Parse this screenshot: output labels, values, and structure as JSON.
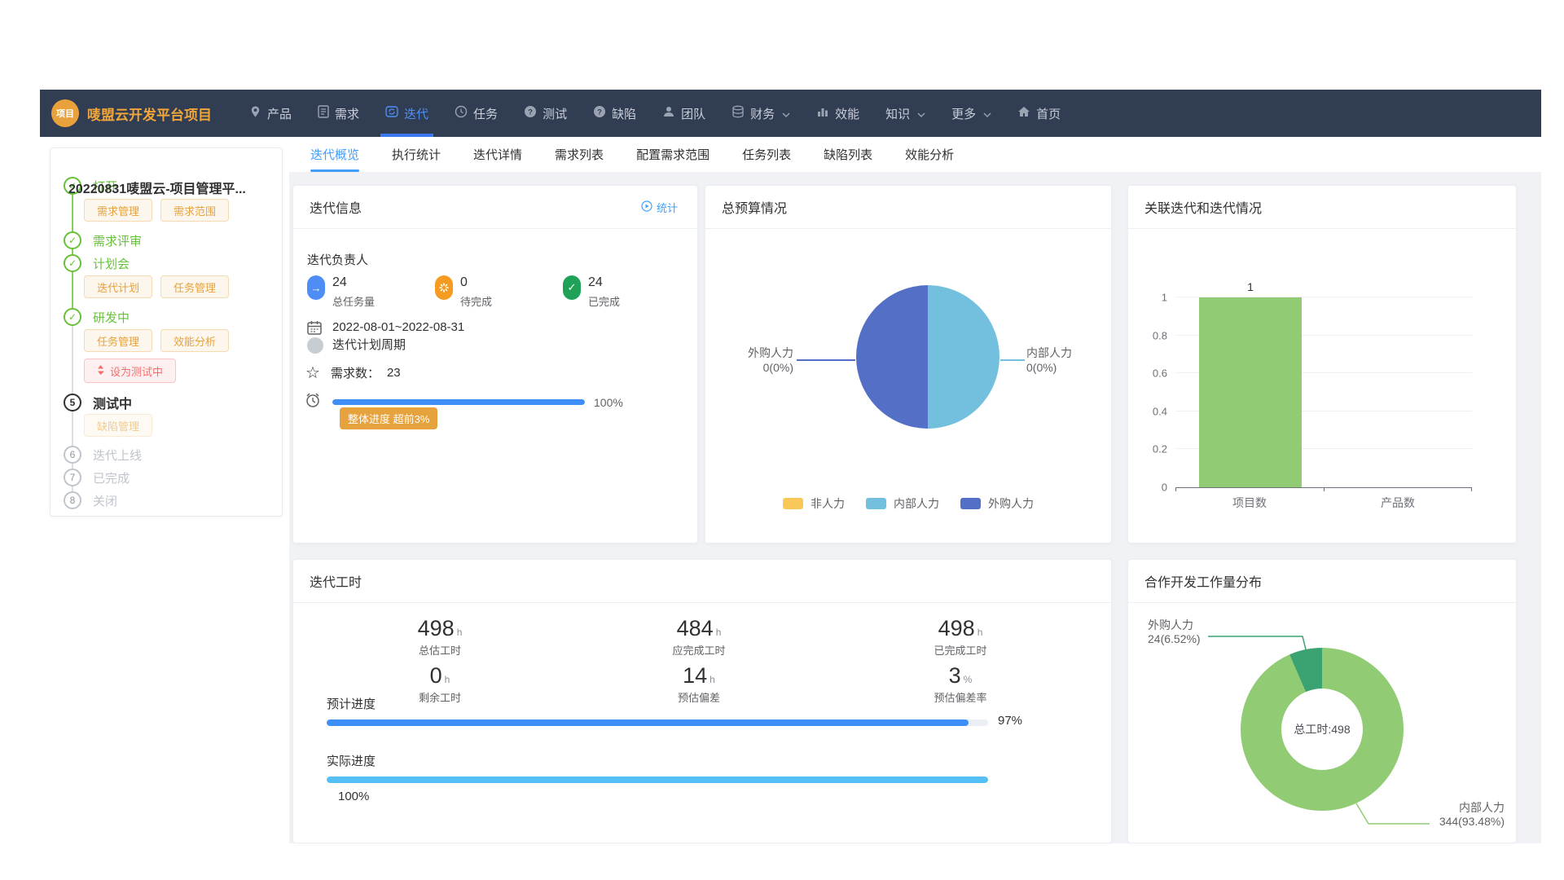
{
  "navbar": {
    "logo": "项目",
    "title": "唛盟云开发平台项目",
    "items": [
      {
        "label": "产品",
        "icon": "pin-icon"
      },
      {
        "label": "需求",
        "icon": "document-icon"
      },
      {
        "label": "迭代",
        "icon": "iteration-icon",
        "active": true
      },
      {
        "label": "任务",
        "icon": "clock-icon"
      },
      {
        "label": "测试",
        "icon": "question-icon"
      },
      {
        "label": "缺陷",
        "icon": "question-icon"
      },
      {
        "label": "团队",
        "icon": "person-icon"
      },
      {
        "label": "财务",
        "icon": "database-icon",
        "dropdown": true
      },
      {
        "label": "效能",
        "icon": "bar-chart-icon"
      },
      {
        "label": "知识",
        "dropdown": true
      },
      {
        "label": "更多",
        "dropdown": true
      },
      {
        "label": "首页",
        "icon": "home-icon"
      }
    ]
  },
  "sidebar": {
    "project_title": "20220831唛盟云-项目管理平...",
    "steps": [
      {
        "label": "打开",
        "state": "done"
      },
      {
        "label": "需求评审",
        "state": "done"
      },
      {
        "label": "计划会",
        "state": "done"
      },
      {
        "label": "研发中",
        "state": "done"
      },
      {
        "label": "测试中",
        "state": "current",
        "num": "5"
      },
      {
        "label": "迭代上线",
        "state": "pending",
        "num": "6"
      },
      {
        "label": "已完成",
        "state": "pending",
        "num": "7"
      },
      {
        "label": "关闭",
        "state": "pending",
        "num": "8"
      }
    ],
    "buttons": {
      "open": [
        "需求管理",
        "需求范围"
      ],
      "plan": [
        "迭代计划",
        "任务管理"
      ],
      "dev": [
        "任务管理",
        "效能分析"
      ],
      "dev_action": "设为测试中",
      "test": [
        "缺陷管理"
      ]
    }
  },
  "tabs": [
    "迭代概览",
    "执行统计",
    "迭代详情",
    "需求列表",
    "配置需求范围",
    "任务列表",
    "缺陷列表",
    "效能分析"
  ],
  "iteration_info": {
    "title": "迭代信息",
    "stats_link": "统计",
    "owner_label": "迭代负责人",
    "stats": [
      {
        "value": "24",
        "label": "总任务量",
        "color": "#4f8df6",
        "icon": "arrow-right-icon"
      },
      {
        "value": "0",
        "label": "待完成",
        "color": "#f59b22",
        "icon": "spinner-icon"
      },
      {
        "value": "24",
        "label": "已完成",
        "color": "#1fa258",
        "icon": "check-icon"
      }
    ],
    "period_value": "2022-08-01~2022-08-31",
    "period_label": "迭代计划周期",
    "demand_label": "需求数：",
    "demand_value": "23",
    "progress_pct": 100,
    "progress_text": "100%",
    "progress_color": "#3e8ef7",
    "badge": "整体进度 超前3%",
    "badge_color": "#e6a23c"
  },
  "budget": {
    "title": "总预算情况"
  },
  "relation": {
    "title": "关联迭代和迭代情况"
  },
  "hours": {
    "title": "迭代工时",
    "columns": [
      {
        "top_value": "498",
        "top_unit": "h",
        "top_label": "总估工时",
        "bottom_value": "0",
        "bottom_unit": "h",
        "bottom_label": "剩余工时"
      },
      {
        "top_value": "484",
        "top_unit": "h",
        "top_label": "应完成工时",
        "bottom_value": "14",
        "bottom_unit": "h",
        "bottom_label": "预估偏差"
      },
      {
        "top_value": "498",
        "top_unit": "h",
        "top_label": "已完成工时",
        "bottom_value": "3",
        "bottom_unit": "%",
        "bottom_label": "预估偏差率"
      }
    ],
    "planned_label": "预计进度",
    "planned_pct": 97,
    "planned_text": "97%",
    "planned_color": "#3e8ef7",
    "actual_label": "实际进度",
    "actual_pct": 100,
    "actual_text": "100%",
    "actual_color": "#55c0f5"
  },
  "workload": {
    "title": "合作开发工作量分布"
  },
  "chart_data": [
    {
      "type": "pie",
      "title": "总预算情况",
      "slices": [
        {
          "name": "非人力",
          "value": 0,
          "color": "#fac858"
        },
        {
          "name": "内部人力",
          "value": 0,
          "color": "#73c0de",
          "callout": "0(0%)"
        },
        {
          "name": "外购人力",
          "value": 0,
          "color": "#5470c6",
          "callout": "0(0%)"
        }
      ],
      "legend_position": "bottom",
      "render_fractions": [
        {
          "color": "#73c0de",
          "fraction": 0.5
        },
        {
          "color": "#5470c6",
          "fraction": 0.5
        }
      ]
    },
    {
      "type": "bar",
      "title": "关联迭代和迭代情况",
      "categories": [
        "项目数",
        "产品数"
      ],
      "values": [
        1,
        0
      ],
      "bar_color": "#91cc75",
      "ylim": [
        0,
        1
      ],
      "yticks": [
        0,
        0.2,
        0.4,
        0.6,
        0.8,
        1
      ],
      "data_labels": [
        "1",
        ""
      ],
      "grid": true,
      "legend_position": "none"
    },
    {
      "type": "pie",
      "title": "合作开发工作量分布",
      "donut": true,
      "center_text": "总工时:498",
      "slices": [
        {
          "name": "内部人力",
          "value": 344,
          "pct": "93.48%",
          "callout": "344(93.48%)",
          "color": "#91cc75"
        },
        {
          "name": "外购人力",
          "value": 24,
          "pct": "6.52%",
          "callout": "24(6.52%)",
          "color": "#3ba272"
        }
      ],
      "render_fractions": [
        {
          "color": "#91cc75",
          "fraction": 0.9348
        },
        {
          "color": "#3ba272",
          "fraction": 0.0652
        }
      ]
    }
  ]
}
